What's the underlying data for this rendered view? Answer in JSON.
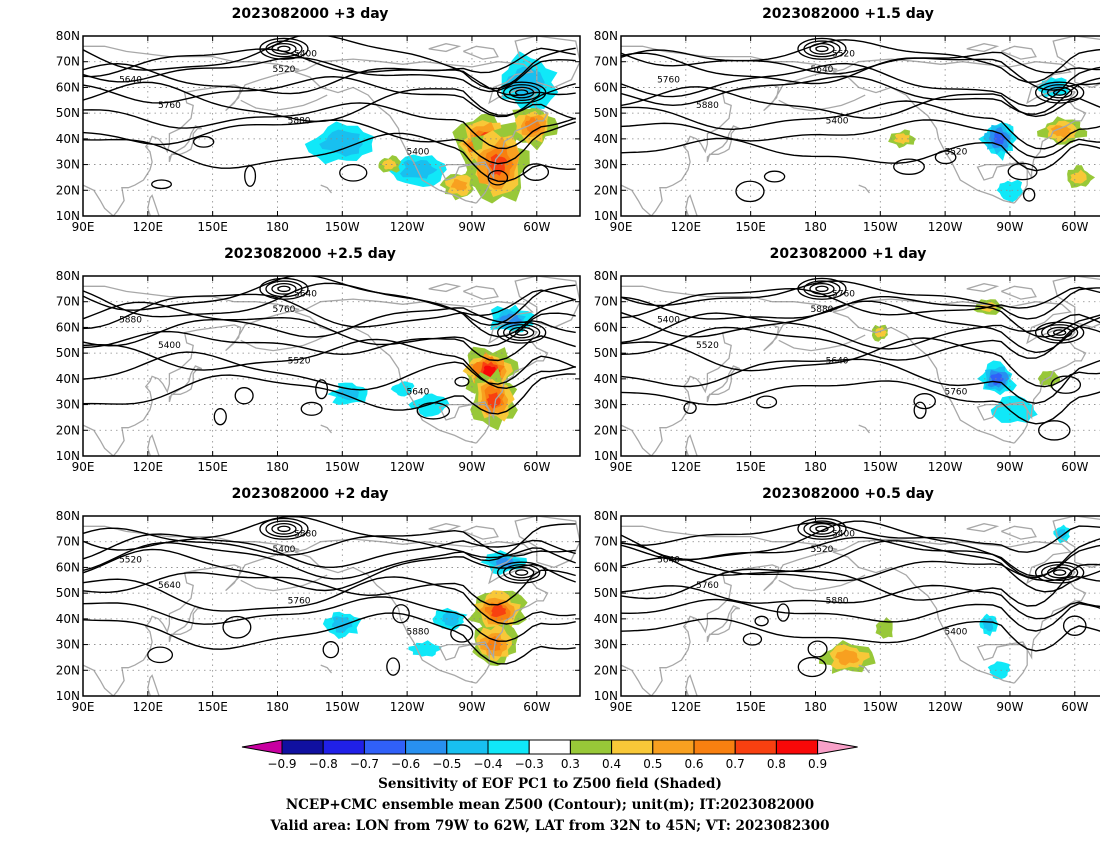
{
  "panels": [
    {
      "title": "2023082000  +3 day",
      "sens": [
        [
          -83,
          38,
          14,
          11,
          0.8
        ],
        [
          -78,
          30,
          14,
          14,
          0.75
        ],
        [
          -62,
          45,
          10,
          8,
          0.65
        ],
        [
          -65,
          62,
          14,
          10,
          -0.45
        ],
        [
          -150,
          38,
          14,
          8,
          -0.45
        ],
        [
          -115,
          28,
          12,
          6,
          -0.4
        ],
        [
          -96,
          22,
          8,
          5,
          0.5
        ],
        [
          -128,
          30,
          5,
          3,
          0.4
        ]
      ]
    },
    {
      "title": "2023082000  +1.5 day",
      "sens": [
        [
          -95,
          40,
          8,
          7,
          -0.65
        ],
        [
          -66,
          43,
          10,
          5,
          0.5
        ],
        [
          -70,
          60,
          7,
          4,
          -0.45
        ],
        [
          -90,
          20,
          6,
          4,
          -0.35
        ],
        [
          -140,
          40,
          6,
          3,
          0.4
        ],
        [
          -58,
          25,
          6,
          4,
          0.4
        ]
      ]
    },
    {
      "title": "2023082000  +2.5 day",
      "sens": [
        [
          -82,
          43,
          12,
          9,
          0.8
        ],
        [
          -80,
          32,
          10,
          10,
          0.7
        ],
        [
          -72,
          63,
          10,
          5,
          -0.55
        ],
        [
          -147,
          34,
          8,
          4,
          -0.4
        ],
        [
          -110,
          30,
          8,
          4,
          -0.35
        ],
        [
          -122,
          36,
          5,
          3,
          -0.35
        ]
      ]
    },
    {
      "title": "2023082000  +1 day",
      "sens": [
        [
          -96,
          40,
          8,
          6,
          -0.6
        ],
        [
          -88,
          28,
          10,
          5,
          -0.35
        ],
        [
          -72,
          40,
          5,
          3,
          0.35
        ],
        [
          -100,
          68,
          6,
          3,
          0.4
        ],
        [
          -150,
          58,
          4,
          3,
          0.4
        ]
      ]
    },
    {
      "title": "2023082000  +2 day",
      "sens": [
        [
          -78,
          43,
          12,
          8,
          0.75
        ],
        [
          -80,
          30,
          10,
          8,
          0.6
        ],
        [
          -75,
          62,
          9,
          4,
          -0.55
        ],
        [
          -100,
          40,
          7,
          4,
          -0.4
        ],
        [
          -150,
          38,
          8,
          5,
          -0.4
        ],
        [
          -112,
          28,
          7,
          3,
          -0.35
        ]
      ]
    },
    {
      "title": "2023082000  +0.5 day",
      "sens": [
        [
          -165,
          25,
          12,
          6,
          0.5
        ],
        [
          -100,
          38,
          4,
          4,
          -0.4
        ],
        [
          -66,
          73,
          4,
          3,
          -0.4
        ],
        [
          -148,
          36,
          4,
          4,
          0.35
        ],
        [
          -95,
          20,
          5,
          3,
          -0.35
        ]
      ]
    }
  ],
  "map": {
    "xticks": [
      [
        "90E",
        90
      ],
      [
        "120E",
        120
      ],
      [
        "150E",
        150
      ],
      [
        "180",
        180
      ],
      [
        "150W",
        210
      ],
      [
        "120W",
        240
      ],
      [
        "90W",
        270
      ],
      [
        "60W",
        300
      ]
    ],
    "yticks": [
      [
        "10N",
        10
      ],
      [
        "20N",
        20
      ],
      [
        "30N",
        30
      ],
      [
        "40N",
        40
      ],
      [
        "50N",
        50
      ],
      [
        "60N",
        60
      ],
      [
        "70N",
        70
      ],
      [
        "80N",
        80
      ]
    ],
    "lon_range": [
      90,
      320
    ],
    "lat_range": [
      10,
      80
    ],
    "grid": true
  },
  "contour_labels": [
    "5400",
    "5520",
    "5640",
    "5760",
    "5880"
  ],
  "colorbar": {
    "levels": [
      "-0.9",
      "-0.8",
      "-0.7",
      "-0.6",
      "-0.5",
      "-0.4",
      "-0.3",
      "0.3",
      "0.4",
      "0.5",
      "0.6",
      "0.7",
      "0.8",
      "0.9"
    ],
    "colors": [
      "#1010a0",
      "#2020e8",
      "#3060f8",
      "#2890f0",
      "#18c0f0",
      "#10e8f8",
      "#ffffff",
      "#98c838",
      "#f8c838",
      "#f8a020",
      "#f88010",
      "#f84010",
      "#f80808"
    ],
    "under_color": "#c800a0",
    "over_color": "#f8a0c8"
  },
  "captions": {
    "line1": "Sensitivity of EOF PC1 to Z500 field (Shaded)",
    "line2": "NCEP+CMC ensemble mean Z500 (Contour); unit(m); IT:2023082000",
    "line3": "Valid area: LON from 79W to 62W, LAT from 32N to 45N; VT: 2023082300"
  }
}
